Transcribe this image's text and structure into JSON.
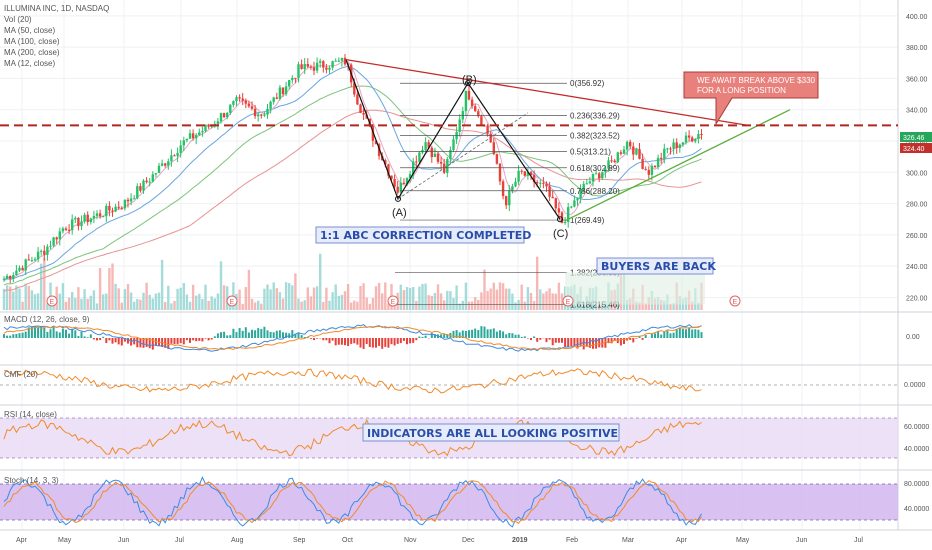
{
  "header": {
    "symbol_line": "ILLUMINA INC, 1D, NASDAQ",
    "indicators": [
      "Vol (20)",
      "MA (50, close)",
      "MA (100, close)",
      "MA (200, close)",
      "MA (12, close)"
    ]
  },
  "callout": {
    "line1": "WE AWAIT BREAK ABOVE $330",
    "line2": "FOR A LONG POSITION"
  },
  "annotations": {
    "abc": "1:1 ABC CORRECTION COMPLETED",
    "buyers": "BUYERS ARE BACK",
    "indicators": "INDICATORS ARE ALL LOOKING POSITIVE"
  },
  "waves": {
    "a": "(A)",
    "b": "(B)",
    "c": "(C)"
  },
  "fib_levels": [
    {
      "label": "0(356.92)",
      "price": 356.92
    },
    {
      "label": "0.236(336.29)",
      "price": 336.29
    },
    {
      "label": "0.382(323.52)",
      "price": 323.52
    },
    {
      "label": "0.5(313.21)",
      "price": 313.21
    },
    {
      "label": "0.618(302.89)",
      "price": 302.89
    },
    {
      "label": "0.786(288.20)",
      "price": 288.2
    },
    {
      "label": "1(269.49)",
      "price": 269.49
    },
    {
      "label": "1.382(236.09)",
      "price": 236.09
    },
    {
      "label": "1.618(215.46)",
      "price": 215.46
    }
  ],
  "price_tags": {
    "upper": "326.46",
    "lower": "324.40"
  },
  "panes": {
    "macd": {
      "title": "MACD (12, 26, close, 9)",
      "ticks": [
        "0.00"
      ]
    },
    "cmf": {
      "title": "CMF (20)",
      "ticks": [
        "0.0000"
      ]
    },
    "rsi": {
      "title": "RSI (14, close)",
      "ticks": [
        "60.0000",
        "40.0000"
      ]
    },
    "stoch": {
      "title": "Stoch (14, 3, 3)",
      "ticks": [
        "80.0000",
        "40.0000"
      ]
    }
  },
  "chart_data": {
    "type": "candlestick",
    "y_axis_ticks": [
      400,
      380,
      360,
      340,
      320,
      300,
      280,
      260,
      240,
      220
    ],
    "x_axis_ticks": [
      "Apr",
      "May",
      "Jun",
      "Jul",
      "Aug",
      "Sep",
      "Oct",
      "Nov",
      "Dec",
      "2019",
      "Feb",
      "Mar",
      "Apr",
      "May",
      "Jun",
      "Jul"
    ],
    "ylim": [
      212,
      405
    ],
    "close_series_monthly": [
      {
        "date": "2018-04",
        "close": 240
      },
      {
        "date": "2018-05",
        "close": 265
      },
      {
        "date": "2018-06",
        "close": 280
      },
      {
        "date": "2018-07",
        "close": 318
      },
      {
        "date": "2018-08",
        "close": 345
      },
      {
        "date": "2018-09",
        "close": 366
      },
      {
        "date": "2018-10",
        "close": 290
      },
      {
        "date": "2018-11",
        "close": 330
      },
      {
        "date": "2018-12",
        "close": 300
      },
      {
        "date": "2019-01",
        "close": 280
      },
      {
        "date": "2019-02",
        "close": 305
      },
      {
        "date": "2019-03",
        "close": 315
      },
      {
        "date": "2019-04",
        "close": 324.4
      }
    ],
    "resistance_level": 330,
    "series": [
      {
        "name": "MA (50, close)"
      },
      {
        "name": "MA (100, close)"
      },
      {
        "name": "MA (200, close)"
      },
      {
        "name": "MA (12, close)"
      }
    ]
  }
}
